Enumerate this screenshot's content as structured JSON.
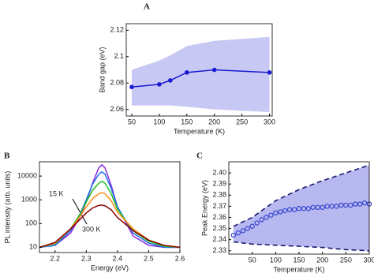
{
  "chart_data": [
    {
      "type": "line",
      "panel_label": "A",
      "xlabel": "Temperature (K)",
      "ylabel": "Band gap (eV)",
      "xlim": [
        40,
        305
      ],
      "ylim": [
        2.055,
        2.125
      ],
      "xticks": [
        50,
        100,
        150,
        200,
        250,
        300
      ],
      "yticks": [
        2.06,
        2.08,
        2.1,
        2.12
      ],
      "x": [
        50,
        100,
        120,
        150,
        200,
        300
      ],
      "band": {
        "x": [
          50,
          100,
          120,
          150,
          200,
          300
        ],
        "upper": [
          2.09,
          2.097,
          2.101,
          2.108,
          2.112,
          2.115
        ],
        "lower": [
          2.063,
          2.063,
          2.063,
          2.062,
          2.06,
          2.058
        ],
        "color": "#c8c8f4",
        "dashed": false
      },
      "series": [
        {
          "color": "#1a1ad0",
          "values": [
            2.077,
            2.079,
            2.082,
            2.088,
            2.09,
            2.088
          ]
        }
      ]
    },
    {
      "type": "line",
      "panel_label": "B",
      "xlabel": "Energy (eV)",
      "ylabel": "PL intensity (arb. units)",
      "yscale": "log",
      "xlim": [
        2.15,
        2.6
      ],
      "ylim": [
        6,
        40000
      ],
      "xticks": [
        2.2,
        2.3,
        2.4,
        2.5,
        2.6
      ],
      "yticks": [
        10,
        100,
        1000,
        10000
      ],
      "annotations": [
        {
          "text": "15 K",
          "color": "#9a1ad0"
        },
        {
          "text": "300 K",
          "color": "#8b0000"
        }
      ],
      "x": [
        2.15,
        2.2,
        2.25,
        2.28,
        2.3,
        2.32,
        2.34,
        2.35,
        2.36,
        2.38,
        2.4,
        2.45,
        2.5,
        2.55,
        2.6
      ],
      "series": [
        {
          "color": "#8a2be2",
          "values": [
            10,
            12,
            40,
            200,
            800,
            5000,
            22000,
            30000,
            22000,
            4000,
            500,
            30,
            12,
            10,
            10
          ]
        },
        {
          "color": "#1f6fe0",
          "values": [
            10,
            12,
            50,
            250,
            1000,
            4500,
            12000,
            15000,
            12000,
            3000,
            500,
            40,
            15,
            10,
            10
          ]
        },
        {
          "color": "#22c022",
          "values": [
            10,
            14,
            60,
            250,
            800,
            2500,
            5000,
            6000,
            5000,
            1800,
            400,
            50,
            18,
            11,
            10
          ]
        },
        {
          "color": "#ff8c1a",
          "values": [
            10,
            15,
            60,
            200,
            500,
            1100,
            1800,
            2000,
            1800,
            900,
            300,
            60,
            20,
            12,
            10
          ]
        },
        {
          "color": "#8b0000",
          "values": [
            10,
            16,
            60,
            150,
            280,
            450,
            580,
            600,
            560,
            380,
            180,
            50,
            20,
            12,
            10
          ]
        }
      ]
    },
    {
      "type": "scatter",
      "panel_label": "C",
      "xlabel": "Temperature (K)",
      "ylabel": "Peak Energy (eV)",
      "xlim": [
        0,
        300
      ],
      "ylim": [
        2.327,
        2.41
      ],
      "xticks": [
        50,
        100,
        150,
        200,
        250,
        300
      ],
      "yticks": [
        2.33,
        2.34,
        2.35,
        2.36,
        2.37,
        2.38,
        2.39,
        {
          "value": 2.4,
          "label": "2.40"
        }
      ],
      "x": [
        10,
        20,
        30,
        40,
        50,
        60,
        70,
        80,
        90,
        100,
        110,
        120,
        130,
        140,
        150,
        160,
        170,
        180,
        190,
        200,
        210,
        220,
        230,
        240,
        250,
        260,
        270,
        280,
        290,
        300
      ],
      "band": {
        "x": [
          10,
          50,
          100,
          150,
          200,
          250,
          300
        ],
        "upper": [
          2.352,
          2.36,
          2.375,
          2.385,
          2.393,
          2.4,
          2.407
        ],
        "lower": [
          2.338,
          2.336,
          2.335,
          2.334,
          2.333,
          2.331,
          2.33
        ],
        "color": "#b8b8f0",
        "dashed": true
      },
      "series": [
        {
          "color": "#3344cc",
          "values": [
            2.344,
            2.346,
            2.348,
            2.35,
            2.352,
            2.355,
            2.358,
            2.36,
            2.362,
            2.364,
            2.365,
            2.366,
            2.367,
            2.367,
            2.368,
            2.368,
            2.368,
            2.369,
            2.369,
            2.369,
            2.37,
            2.37,
            2.37,
            2.371,
            2.371,
            2.371,
            2.372,
            2.372,
            2.373,
            2.372
          ]
        }
      ]
    }
  ]
}
